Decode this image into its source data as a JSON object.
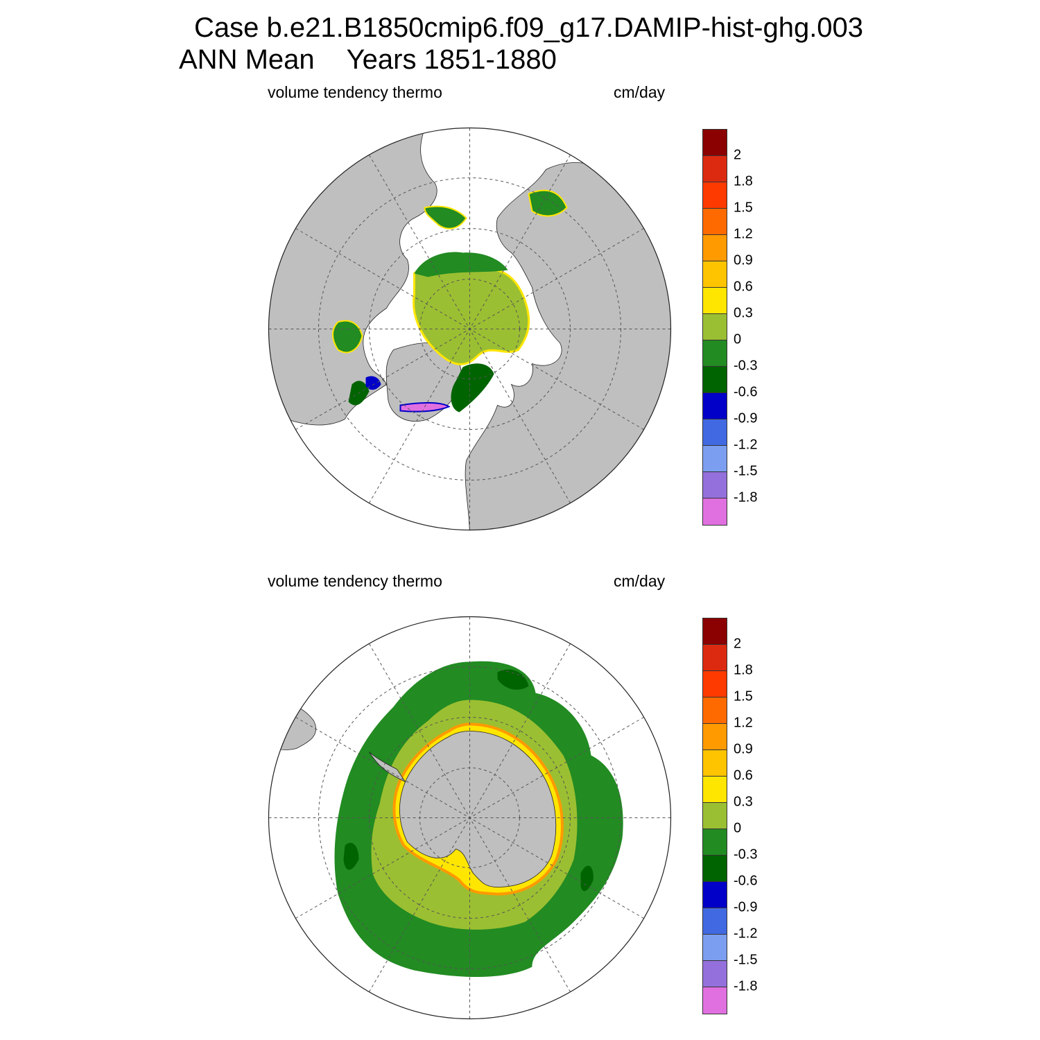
{
  "header": {
    "case_line": "Case b.e21.B1850cmip6.f09_g17.DAMIP-hist-ghg.003",
    "period_label": "ANN Mean",
    "years_label": "Years 1851-1880"
  },
  "panels": [
    {
      "id": "north",
      "title": "volume tendency thermo",
      "units": "cm/day"
    },
    {
      "id": "south",
      "title": "volume tendency thermo",
      "units": "cm/day"
    }
  ],
  "colorbar": {
    "labels": [
      "2",
      "1.8",
      "1.5",
      "1.2",
      "0.9",
      "0.6",
      "0.3",
      "0",
      "-0.3",
      "-0.6",
      "-0.9",
      "-1.2",
      "-1.5",
      "-1.8"
    ],
    "colors": [
      "#8b0000",
      "#dc2a10",
      "#ff3a00",
      "#ff6a00",
      "#ff9a00",
      "#ffc400",
      "#ffe600",
      "#9bbf32",
      "#228b22",
      "#006400",
      "#0000c8",
      "#4169e1",
      "#7b9ef0",
      "#9370db",
      "#e070e0"
    ]
  },
  "colors": {
    "land": "#bfbfbf",
    "ocean_empty": "#ffffff",
    "grid": "#555555"
  }
}
